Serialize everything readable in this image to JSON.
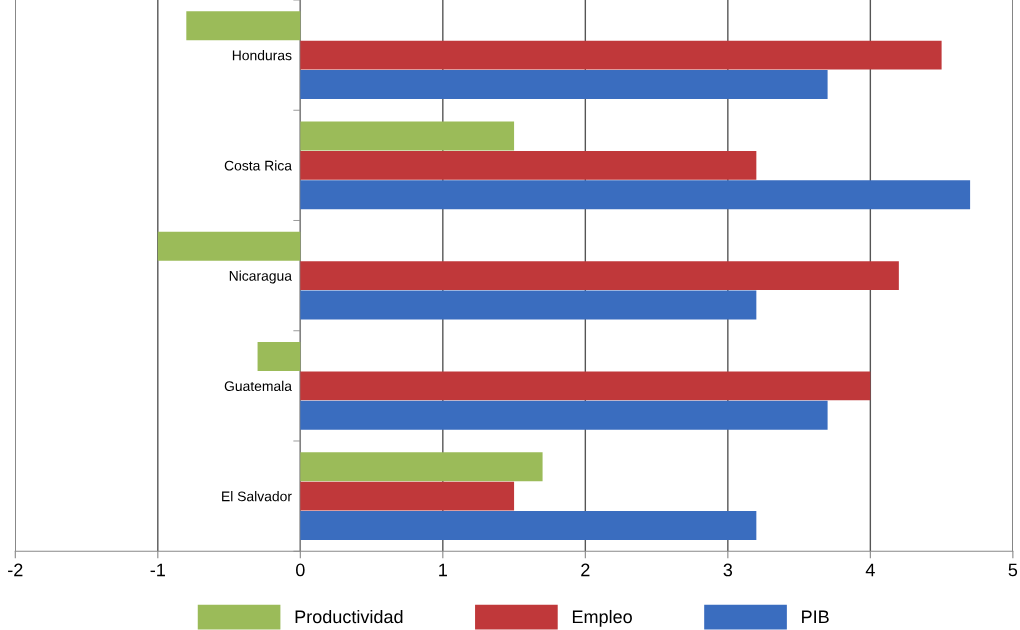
{
  "chart_data": {
    "type": "bar",
    "orientation": "horizontal",
    "categories": [
      "Honduras",
      "Costa Rica",
      "Nicaragua",
      "Guatemala",
      "El Salvador"
    ],
    "series": [
      {
        "name": "Productividad",
        "color": "#9bbb59",
        "values": [
          -0.8,
          1.5,
          -1.0,
          -0.3,
          1.7
        ]
      },
      {
        "name": "Empleo",
        "color": "#c0383a",
        "values": [
          4.5,
          3.2,
          4.2,
          4.0,
          1.5
        ]
      },
      {
        "name": "PIB",
        "color": "#3a6dbf",
        "values": [
          3.7,
          4.7,
          3.2,
          3.7,
          3.2
        ]
      }
    ],
    "xlim": [
      -2,
      5
    ],
    "xticks": [
      -2,
      -1,
      0,
      1,
      2,
      3,
      4,
      5
    ],
    "grid": "x",
    "legend": "bottom"
  }
}
